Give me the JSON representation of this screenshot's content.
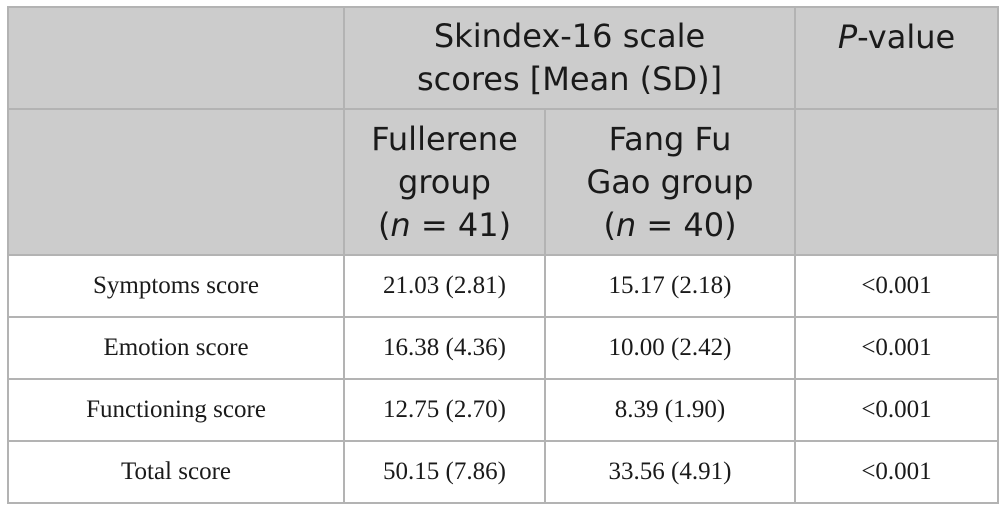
{
  "header": {
    "group_title_line1": "Skindex-16 scale",
    "group_title_line2": "scores [Mean (SD)]",
    "p_label_italic": "P",
    "p_label_rest": "-value",
    "col1_line1": "Fullerene",
    "col1_line2": "group",
    "col1_n_open": "(",
    "col1_n_italic": "n",
    "col1_n_rest": " = 41)",
    "col2_line1": "Fang Fu",
    "col2_line2": "Gao group",
    "col2_n_open": "(",
    "col2_n_italic": "n",
    "col2_n_rest": " = 40)"
  },
  "rows": [
    {
      "label": "Symptoms score",
      "fullerene": "21.03 (2.81)",
      "fangfugao": "15.17 (2.18)",
      "p": "<0.001"
    },
    {
      "label": "Emotion score",
      "fullerene": "16.38 (4.36)",
      "fangfugao": "10.00 (2.42)",
      "p": "<0.001"
    },
    {
      "label": "Functioning score",
      "fullerene": "12.75 (2.70)",
      "fangfugao": "8.39 (1.90)",
      "p": "<0.001"
    },
    {
      "label": "Total score",
      "fullerene": "50.15 (7.86)",
      "fangfugao": "33.56 (4.91)",
      "p": "<0.001"
    }
  ]
}
